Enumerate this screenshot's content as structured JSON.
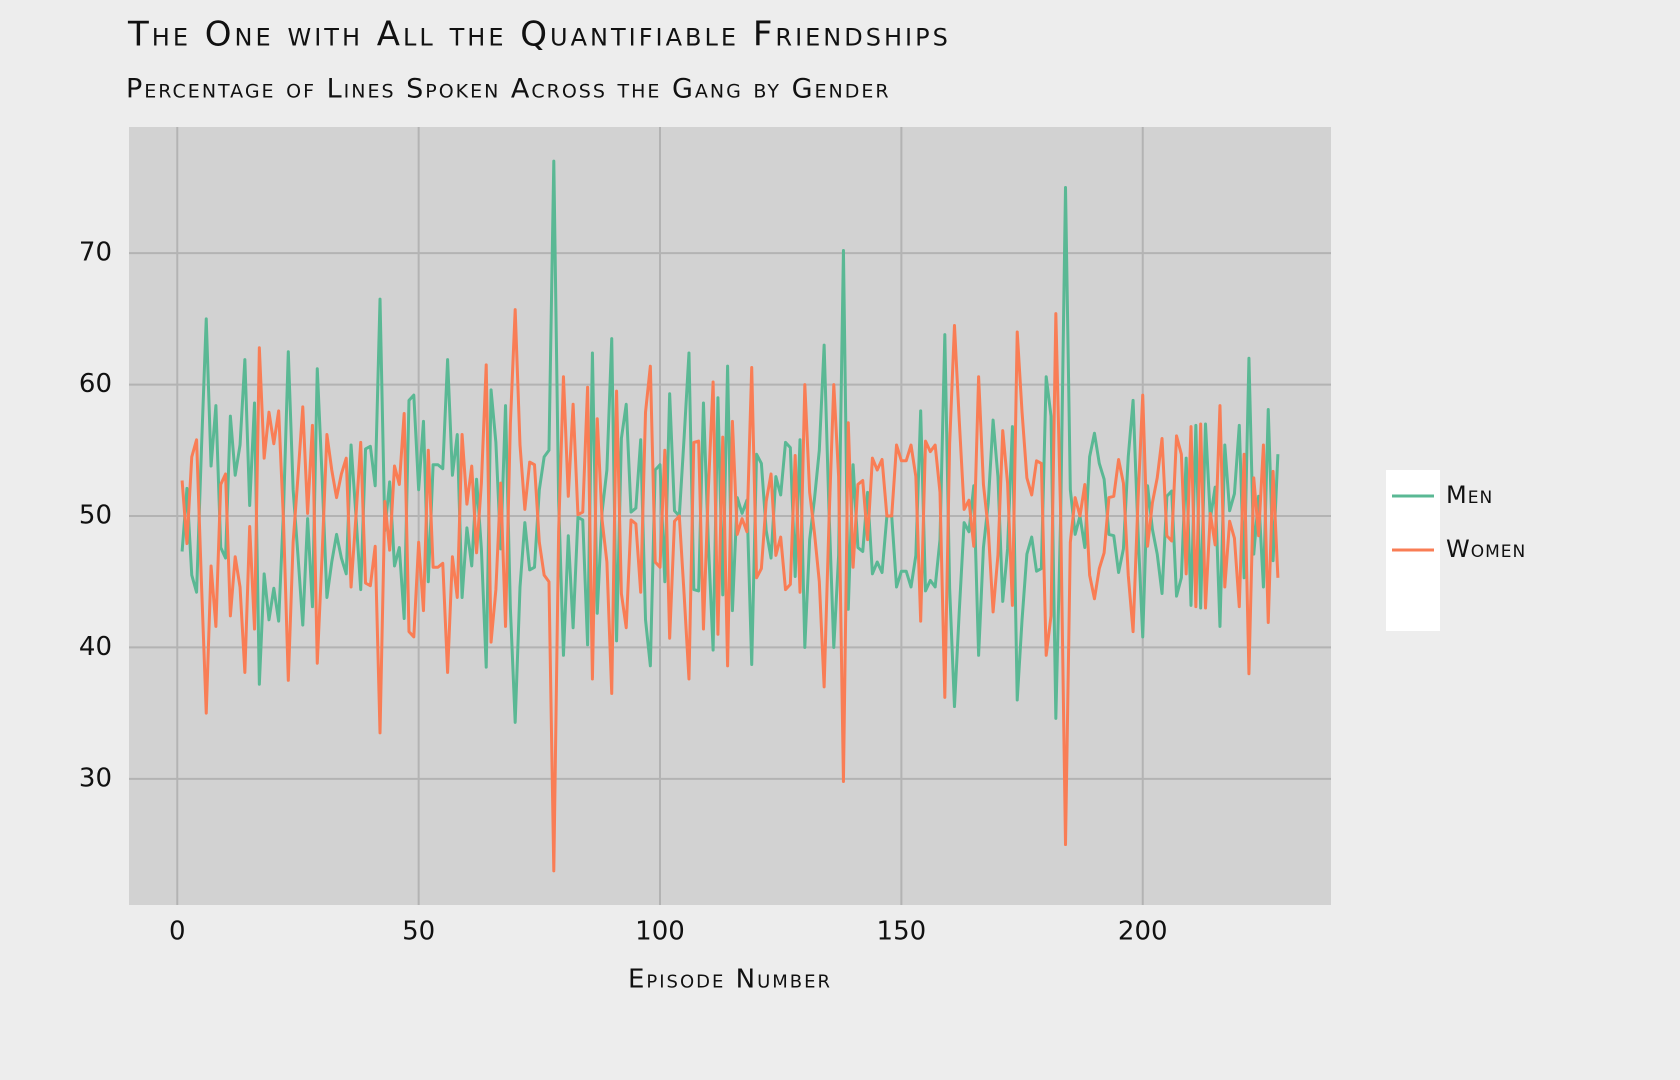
{
  "chart_data": {
    "type": "line",
    "title": "The One with All the Quantifiable Friendships",
    "subtitle": "Percentage of Lines Spoken Across the Gang by Gender",
    "x_label": "Episode Number",
    "xlim": [
      -10,
      239
    ],
    "ylim": [
      20.4,
      79.6
    ],
    "xticks": [
      0,
      50,
      100,
      150,
      200
    ],
    "yticks": [
      30,
      40,
      50,
      60,
      70
    ],
    "grid": true,
    "legend": "right",
    "x": [
      1,
      2,
      3,
      4,
      5,
      6,
      7,
      8,
      9,
      10,
      11,
      12,
      13,
      14,
      15,
      16,
      17,
      18,
      19,
      20,
      21,
      22,
      23,
      24,
      25,
      26,
      27,
      28,
      29,
      30,
      31,
      32,
      33,
      34,
      35,
      36,
      37,
      38,
      39,
      40,
      41,
      42,
      43,
      44,
      45,
      46,
      47,
      48,
      49,
      50,
      51,
      52,
      53,
      54,
      55,
      56,
      57,
      58,
      59,
      60,
      61,
      62,
      63,
      64,
      65,
      66,
      67,
      68,
      69,
      70,
      71,
      72,
      73,
      74,
      75,
      76,
      77,
      78,
      79,
      80,
      81,
      82,
      83,
      84,
      85,
      86,
      87,
      88,
      89,
      90,
      91,
      92,
      93,
      94,
      95,
      96,
      97,
      98,
      99,
      100,
      101,
      102,
      103,
      104,
      105,
      106,
      107,
      108,
      109,
      110,
      111,
      112,
      113,
      114,
      115,
      116,
      117,
      118,
      119,
      120,
      121,
      122,
      123,
      124,
      125,
      126,
      127,
      128,
      129,
      130,
      131,
      132,
      133,
      134,
      135,
      136,
      137,
      138,
      139,
      140,
      141,
      142,
      143,
      144,
      145,
      146,
      147,
      148,
      149,
      150,
      151,
      152,
      153,
      154,
      155,
      156,
      157,
      158,
      159,
      160,
      161,
      162,
      163,
      164,
      165,
      166,
      167,
      168,
      169,
      170,
      171,
      172,
      173,
      174,
      175,
      176,
      177,
      178,
      179,
      180,
      181,
      182,
      183,
      184,
      185,
      186,
      187,
      188,
      189,
      190,
      191,
      192,
      193,
      194,
      195,
      196,
      197,
      198,
      199,
      200,
      201,
      202,
      203,
      204,
      205,
      206,
      207,
      208,
      209,
      210,
      211,
      212,
      213,
      214,
      215,
      216,
      217,
      218,
      219,
      220,
      221,
      222,
      223,
      224,
      225,
      226,
      227,
      228
    ],
    "series": [
      {
        "name": "Men",
        "color": "#5ab894",
        "values": [
          47.3,
          52.1,
          45.5,
          44.2,
          55.0,
          65.0,
          53.8,
          58.4,
          47.6,
          46.8,
          57.6,
          53.1,
          55.4,
          61.9,
          50.8,
          58.6,
          37.2,
          45.6,
          42.1,
          44.5,
          42.0,
          50.3,
          62.5,
          52.0,
          47.0,
          41.7,
          49.8,
          43.1,
          61.2,
          53.0,
          43.8,
          46.5,
          48.6,
          46.8,
          45.6,
          55.4,
          50.1,
          44.4,
          55.1,
          55.3,
          52.3,
          66.5,
          48.9,
          52.6,
          46.2,
          47.6,
          42.2,
          58.8,
          59.2,
          52.0,
          57.2,
          45.0,
          53.9,
          53.9,
          53.6,
          61.9,
          53.1,
          56.2,
          43.8,
          49.1,
          46.2,
          52.8,
          47.5,
          38.5,
          59.6,
          55.6,
          47.5,
          58.4,
          43.0,
          34.3,
          44.6,
          49.5,
          45.9,
          46.1,
          52.0,
          54.5,
          55.0,
          77.0,
          51.2,
          39.4,
          48.5,
          41.5,
          49.9,
          49.7,
          40.2,
          62.4,
          42.6,
          50.3,
          53.5,
          63.5,
          40.5,
          55.9,
          58.5,
          50.3,
          50.6,
          55.8,
          42.1,
          38.6,
          53.5,
          53.9,
          45.0,
          59.3,
          50.4,
          50.0,
          56.0,
          62.4,
          44.4,
          44.3,
          58.6,
          48.1,
          39.8,
          59.0,
          44.0,
          61.4,
          42.8,
          51.4,
          50.2,
          51.2,
          38.7,
          54.7,
          54.0,
          48.9,
          46.8,
          53.0,
          51.6,
          55.6,
          55.2,
          45.4,
          55.8,
          40.0,
          48.2,
          51.3,
          55.0,
          63.0,
          50.5,
          40.0,
          47.0,
          70.2,
          42.9,
          53.9,
          47.6,
          47.3,
          51.8,
          45.6,
          46.5,
          45.7,
          50.0,
          50.0,
          44.6,
          45.8,
          45.8,
          44.6,
          47.0,
          58.0,
          44.3,
          45.1,
          44.6,
          48.2,
          63.8,
          44.5,
          35.5,
          42.8,
          49.5,
          48.8,
          52.3,
          39.4,
          47.6,
          51.0,
          57.3,
          53.0,
          43.5,
          47.5,
          56.8,
          36.0,
          42.1,
          47.1,
          48.4,
          45.8,
          46.0,
          60.6,
          57.6,
          34.6,
          50.0,
          75.0,
          52.0,
          48.6,
          50.0,
          47.6,
          54.5,
          56.3,
          54.0,
          52.8,
          48.6,
          48.5,
          45.7,
          47.5,
          54.5,
          58.8,
          49.0,
          40.8,
          52.3,
          49.0,
          47.1,
          44.1,
          51.5,
          51.9,
          43.9,
          45.3,
          54.4,
          43.2,
          56.9,
          43.0,
          57.0,
          49.8,
          52.2,
          41.6,
          55.4,
          50.4,
          51.7,
          56.9,
          45.3,
          62.0,
          47.1,
          51.5,
          44.6,
          58.1,
          46.6,
          54.7
        ]
      },
      {
        "name": "Women",
        "color": "#f97d55",
        "values": [
          52.7,
          47.9,
          54.5,
          55.8,
          45.0,
          35.0,
          46.2,
          41.6,
          52.4,
          53.2,
          42.4,
          46.9,
          44.6,
          38.1,
          49.2,
          41.4,
          62.8,
          54.4,
          57.9,
          55.5,
          58.0,
          49.7,
          37.5,
          48.0,
          53.0,
          58.3,
          50.2,
          56.9,
          38.8,
          47.0,
          56.2,
          53.5,
          51.4,
          53.2,
          54.4,
          44.6,
          49.9,
          55.6,
          44.9,
          44.7,
          47.7,
          33.5,
          51.1,
          47.4,
          53.8,
          52.4,
          57.8,
          41.2,
          40.8,
          48.0,
          42.8,
          55.0,
          46.1,
          46.1,
          46.4,
          38.1,
          46.9,
          43.8,
          56.2,
          50.9,
          53.8,
          47.2,
          52.5,
          61.5,
          40.4,
          44.4,
          52.5,
          41.6,
          57.0,
          65.7,
          55.4,
          50.5,
          54.1,
          53.9,
          48.0,
          45.5,
          45.0,
          23.0,
          48.8,
          60.6,
          51.5,
          58.5,
          50.1,
          50.3,
          59.8,
          37.6,
          57.4,
          49.7,
          46.5,
          36.5,
          59.5,
          44.1,
          41.5,
          49.7,
          49.4,
          44.2,
          57.9,
          61.4,
          46.5,
          46.1,
          55.0,
          40.7,
          49.6,
          50.0,
          44.0,
          37.6,
          55.6,
          55.7,
          41.4,
          51.9,
          60.2,
          41.0,
          56.0,
          38.6,
          57.2,
          48.6,
          49.8,
          48.8,
          61.3,
          45.3,
          46.0,
          51.1,
          53.2,
          47.0,
          48.4,
          44.4,
          44.8,
          54.6,
          44.2,
          60.0,
          51.8,
          48.7,
          45.0,
          37.0,
          49.5,
          60.0,
          53.0,
          29.8,
          57.1,
          46.1,
          52.4,
          52.7,
          48.2,
          54.4,
          53.5,
          54.3,
          50.0,
          50.0,
          55.4,
          54.2,
          54.2,
          55.4,
          53.0,
          42.0,
          55.7,
          54.9,
          55.4,
          51.8,
          36.2,
          55.5,
          64.5,
          57.2,
          50.5,
          51.2,
          47.7,
          60.6,
          52.4,
          49.0,
          42.7,
          47.0,
          56.5,
          52.5,
          43.2,
          64.0,
          57.9,
          52.9,
          51.6,
          54.2,
          54.0,
          39.4,
          42.4,
          65.4,
          50.0,
          25.0,
          48.0,
          51.4,
          50.0,
          52.4,
          45.5,
          43.7,
          46.0,
          47.2,
          51.4,
          51.5,
          54.3,
          52.5,
          45.5,
          41.2,
          51.0,
          59.2,
          47.7,
          51.0,
          52.9,
          55.9,
          48.5,
          48.1,
          56.1,
          54.7,
          45.6,
          56.8,
          43.1,
          57.0,
          43.0,
          50.2,
          47.8,
          58.4,
          44.6,
          49.6,
          48.3,
          43.1,
          54.7,
          38.0,
          52.9,
          48.5,
          55.4,
          41.9,
          53.4,
          45.3
        ]
      }
    ]
  }
}
